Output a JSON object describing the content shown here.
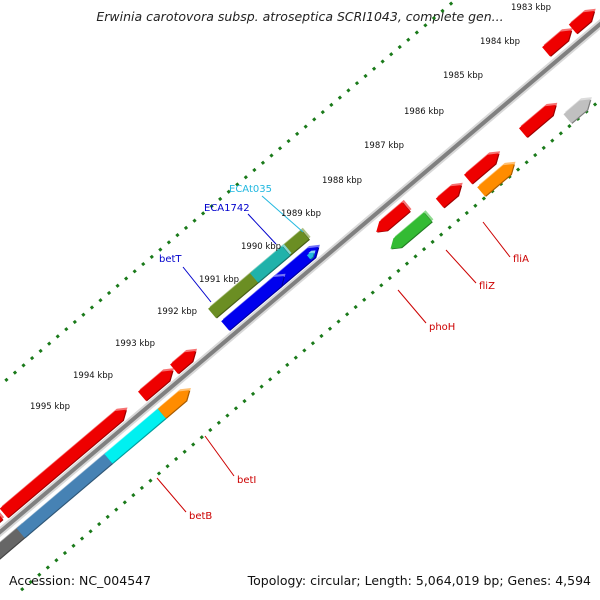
{
  "header": {
    "title": "Erwinia carotovora subsp. atroseptica SCRI1043, complete gen..."
  },
  "footer": {
    "accession": "Accession: NC_004547",
    "summary": "Topology: circular; Length: 5,064,019 bp; Genes: 4,594"
  },
  "ticks": [
    {
      "label": "1983 kbp"
    },
    {
      "label": "1984 kbp"
    },
    {
      "label": "1985 kbp"
    },
    {
      "label": "1986 kbp"
    },
    {
      "label": "1987 kbp"
    },
    {
      "label": "1988 kbp"
    },
    {
      "label": "1989 kbp"
    },
    {
      "label": "1990 kbp"
    },
    {
      "label": "1991 kbp"
    },
    {
      "label": "1992 kbp"
    },
    {
      "label": "1993 kbp"
    },
    {
      "label": "1994 kbp"
    },
    {
      "label": "1995 kbp"
    }
  ],
  "gene_labels": [
    {
      "name": "ECAt035",
      "color": "#22b8e0"
    },
    {
      "name": "ECA1742",
      "color": "#0000cc"
    },
    {
      "name": "betT",
      "color": "#0000cc"
    },
    {
      "name": "fliA",
      "color": "#cc0000"
    },
    {
      "name": "fliZ",
      "color": "#cc0000"
    },
    {
      "name": "phoH",
      "color": "#cc0000"
    },
    {
      "name": "betI",
      "color": "#cc0000"
    },
    {
      "name": "betB",
      "color": "#cc0000"
    }
  ],
  "colors": {
    "backbone": "#808080",
    "tick": "#1a7a1a",
    "red_feature": "#ee0000",
    "orange_feature": "#ff8c00",
    "green_feature": "#33bb33",
    "olive_feature": "#6b8e23",
    "blue_feature": "#0000ee",
    "teal_feature": "#20b2aa",
    "cyan_feature": "#00f0f0",
    "steelblue_feature": "#4682b4",
    "gray_feature": "#c0c0c0",
    "darkgray_feature": "#666666"
  }
}
